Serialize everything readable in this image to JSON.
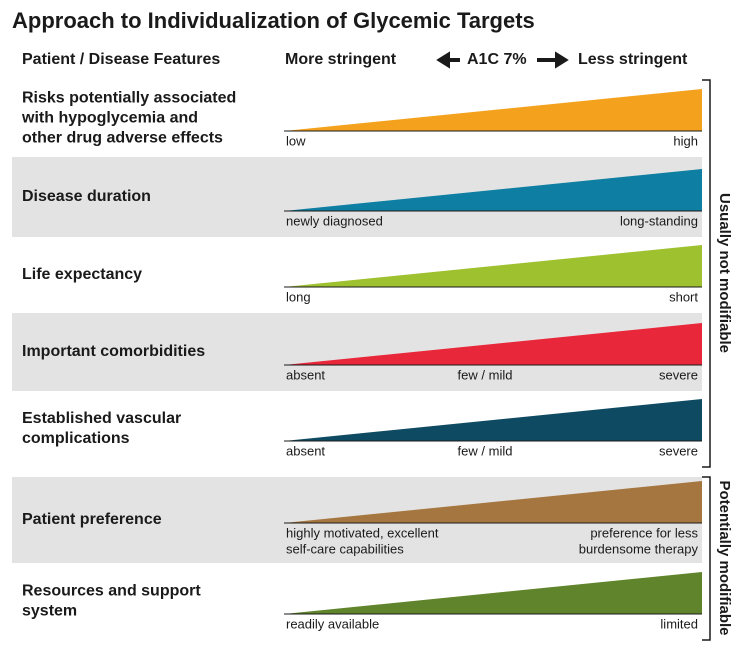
{
  "title": "Approach to Individualization of Glycemic Targets",
  "header": {
    "features": "Patient / Disease Features",
    "more": "More stringent",
    "center": "A1C 7%",
    "less": "Less stringent"
  },
  "rows": [
    {
      "label": [
        "Risks potentially associated",
        "with hypoglycemia and",
        "other drug adverse effects"
      ],
      "color": "#f4a11d",
      "left": [
        "low"
      ],
      "right": [
        "high"
      ]
    },
    {
      "label": [
        "Disease duration"
      ],
      "color": "#0e7ea3",
      "left": [
        "newly diagnosed"
      ],
      "right": [
        "long-standing"
      ]
    },
    {
      "label": [
        "Life expectancy"
      ],
      "color": "#9dc12f",
      "left": [
        "long"
      ],
      "right": [
        "short"
      ]
    },
    {
      "label": [
        "Important comorbidities"
      ],
      "color": "#e8283a",
      "left": [
        "absent"
      ],
      "mid": "few / mild",
      "right": [
        "severe"
      ]
    },
    {
      "label": [
        "Established vascular",
        "complications"
      ],
      "color": "#0f4a63",
      "left": [
        "absent"
      ],
      "mid": "few / mild",
      "right": [
        "severe"
      ]
    },
    {
      "label": [
        "Patient preference"
      ],
      "color": "#a5763f",
      "left": [
        "highly motivated, excellent",
        "self-care capabilities"
      ],
      "right": [
        "preference for less",
        "burdensome therapy"
      ]
    },
    {
      "label": [
        "Resources and support",
        "system"
      ],
      "color": "#5f842b",
      "left": [
        "readily available"
      ],
      "right": [
        "limited"
      ]
    }
  ],
  "groups": [
    {
      "label": "Usually not modifiable"
    },
    {
      "label": "Potentially modifiable"
    }
  ]
}
